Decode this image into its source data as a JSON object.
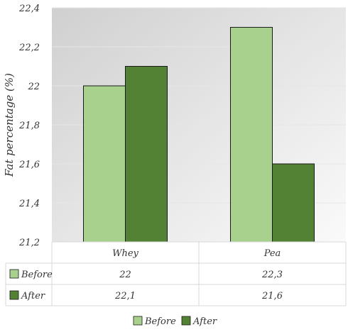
{
  "chart_data": {
    "type": "bar",
    "title": "",
    "xlabel": "",
    "ylabel": "Fat percentage (%)",
    "ylim": [
      21.2,
      22.4
    ],
    "yticks": [
      21.2,
      21.4,
      21.6,
      21.8,
      22,
      22.2,
      22.4
    ],
    "ytick_labels": [
      "21,2",
      "21,4",
      "21,6",
      "21,8",
      "22",
      "22,2",
      "22,4"
    ],
    "categories": [
      "Whey",
      "Pea"
    ],
    "series": [
      {
        "name": "Before",
        "values": [
          22,
          22.3
        ],
        "labels": [
          "22",
          "22,3"
        ],
        "color": "#a9d18e"
      },
      {
        "name": "After",
        "values": [
          22.1,
          21.6
        ],
        "labels": [
          "22,1",
          "21,6"
        ],
        "color": "#548235"
      }
    ],
    "grid": true,
    "legend": "bottom",
    "data_table": true,
    "plot_background": "gradient gray"
  }
}
